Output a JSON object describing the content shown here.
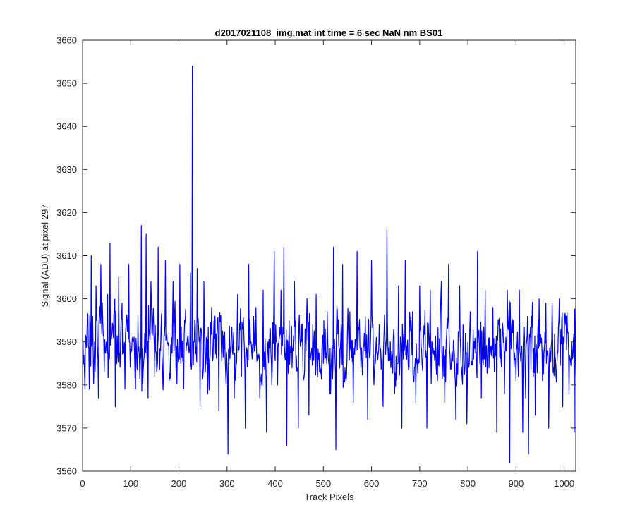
{
  "chart_data": {
    "type": "line",
    "title": "d2017021108_img.mat int time = 6 sec  NaN nm BS01",
    "xlabel": "Track Pixels",
    "ylabel": "Signal (ADU) at pixel 297",
    "xlim": [
      0,
      1024
    ],
    "ylim": [
      3560,
      3660
    ],
    "xticks": [
      0,
      100,
      200,
      300,
      400,
      500,
      600,
      700,
      800,
      900,
      1000
    ],
    "yticks": [
      3560,
      3570,
      3580,
      3590,
      3600,
      3610,
      3620,
      3630,
      3640,
      3650,
      3660
    ],
    "grid": false,
    "legend": "none",
    "series": [
      {
        "color": "#0000ff",
        "x_start": 1,
        "x_step": 1,
        "points": 1024,
        "noise_seed": 20170211,
        "anchors": [
          [
            1,
            3590
          ],
          [
            5,
            3579
          ],
          [
            10,
            3596
          ],
          [
            14,
            3579
          ],
          [
            18,
            3610
          ],
          [
            22,
            3588
          ],
          [
            28,
            3603
          ],
          [
            33,
            3577
          ],
          [
            38,
            3608
          ],
          [
            45,
            3583
          ],
          [
            52,
            3601
          ],
          [
            57,
            3613
          ],
          [
            64,
            3591
          ],
          [
            68,
            3575
          ],
          [
            75,
            3605
          ],
          [
            82,
            3599
          ],
          [
            88,
            3579
          ],
          [
            96,
            3608
          ],
          [
            105,
            3590
          ],
          [
            110,
            3579
          ],
          [
            115,
            3596
          ],
          [
            122,
            3617
          ],
          [
            128,
            3587
          ],
          [
            132,
            3615
          ],
          [
            136,
            3577
          ],
          [
            142,
            3604
          ],
          [
            150,
            3582
          ],
          [
            157,
            3612
          ],
          [
            165,
            3587
          ],
          [
            172,
            3609
          ],
          [
            180,
            3581
          ],
          [
            188,
            3604
          ],
          [
            195,
            3589
          ],
          [
            202,
            3608
          ],
          [
            210,
            3579
          ],
          [
            218,
            3591
          ],
          [
            224,
            3606
          ],
          [
            228,
            3654
          ],
          [
            232,
            3590
          ],
          [
            238,
            3607
          ],
          [
            244,
            3575
          ],
          [
            252,
            3604
          ],
          [
            260,
            3578
          ],
          [
            268,
            3598
          ],
          [
            275,
            3596
          ],
          [
            283,
            3574
          ],
          [
            290,
            3591
          ],
          [
            297,
            3583
          ],
          [
            302,
            3564
          ],
          [
            308,
            3589
          ],
          [
            315,
            3577
          ],
          [
            322,
            3601
          ],
          [
            330,
            3582
          ],
          [
            338,
            3570
          ],
          [
            345,
            3608
          ],
          [
            352,
            3586
          ],
          [
            360,
            3598
          ],
          [
            368,
            3577
          ],
          [
            375,
            3602
          ],
          [
            382,
            3569
          ],
          [
            390,
            3593
          ],
          [
            398,
            3611
          ],
          [
            405,
            3580
          ],
          [
            412,
            3602
          ],
          [
            418,
            3612
          ],
          [
            424,
            3566
          ],
          [
            432,
            3589
          ],
          [
            440,
            3604
          ],
          [
            448,
            3570
          ],
          [
            455,
            3590
          ],
          [
            462,
            3593
          ],
          [
            470,
            3573
          ],
          [
            478,
            3594
          ],
          [
            485,
            3601
          ],
          [
            492,
            3583
          ],
          [
            500,
            3585
          ],
          [
            508,
            3597
          ],
          [
            515,
            3578
          ],
          [
            521,
            3612
          ],
          [
            526,
            3565
          ],
          [
            532,
            3589
          ],
          [
            540,
            3608
          ],
          [
            547,
            3581
          ],
          [
            555,
            3597
          ],
          [
            562,
            3576
          ],
          [
            570,
            3611
          ],
          [
            578,
            3584
          ],
          [
            585,
            3592
          ],
          [
            592,
            3572
          ],
          [
            600,
            3609
          ],
          [
            608,
            3585
          ],
          [
            616,
            3594
          ],
          [
            624,
            3575
          ],
          [
            632,
            3616
          ],
          [
            640,
            3584
          ],
          [
            648,
            3578
          ],
          [
            656,
            3603
          ],
          [
            663,
            3570
          ],
          [
            670,
            3609
          ],
          [
            678,
            3584
          ],
          [
            685,
            3597
          ],
          [
            692,
            3576
          ],
          [
            700,
            3603
          ],
          [
            708,
            3591
          ],
          [
            715,
            3570
          ],
          [
            722,
            3602
          ],
          [
            730,
            3588
          ],
          [
            737,
            3581
          ],
          [
            745,
            3604
          ],
          [
            752,
            3576
          ],
          [
            760,
            3608
          ],
          [
            768,
            3586
          ],
          [
            775,
            3572
          ],
          [
            783,
            3603
          ],
          [
            790,
            3594
          ],
          [
            798,
            3571
          ],
          [
            805,
            3597
          ],
          [
            812,
            3586
          ],
          [
            820,
            3611
          ],
          [
            828,
            3577
          ],
          [
            836,
            3602
          ],
          [
            844,
            3584
          ],
          [
            852,
            3598
          ],
          [
            860,
            3569
          ],
          [
            868,
            3593
          ],
          [
            876,
            3578
          ],
          [
            882,
            3602
          ],
          [
            887,
            3562
          ],
          [
            894,
            3595
          ],
          [
            900,
            3581
          ],
          [
            907,
            3602
          ],
          [
            914,
            3569
          ],
          [
            920,
            3577
          ],
          [
            926,
            3564
          ],
          [
            932,
            3596
          ],
          [
            940,
            3573
          ],
          [
            948,
            3600
          ],
          [
            955,
            3581
          ],
          [
            962,
            3599
          ],
          [
            968,
            3570
          ],
          [
            975,
            3599
          ],
          [
            983,
            3582
          ],
          [
            990,
            3600
          ],
          [
            997,
            3575
          ],
          [
            1004,
            3596
          ],
          [
            1010,
            3578
          ],
          [
            1016,
            3589
          ],
          [
            1021,
            3569
          ],
          [
            1024,
            3582
          ]
        ]
      }
    ]
  }
}
